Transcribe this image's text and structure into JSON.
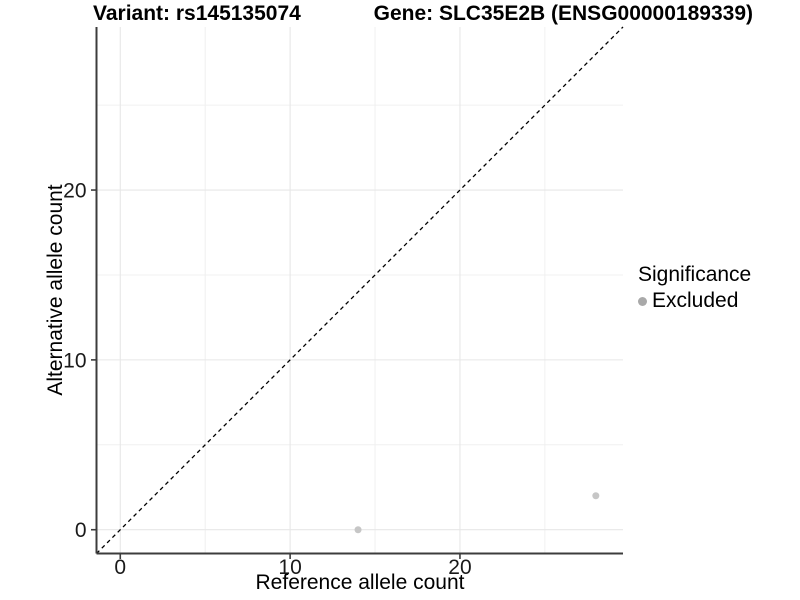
{
  "chart_data": {
    "type": "scatter",
    "title_variant": "Variant: rs145135074",
    "title_gene": "Gene: SLC35E2B (ENSG00000189339)",
    "xlabel": "Reference allele count",
    "ylabel": "Alternative allele count",
    "xlim": [
      -1.4,
      29.6
    ],
    "ylim": [
      -1.4,
      29.6
    ],
    "x_ticks": [
      0,
      10,
      20
    ],
    "y_ticks": [
      0,
      10,
      20
    ],
    "x_minor_ticks": [
      5,
      15,
      25
    ],
    "y_minor_ticks": [
      5,
      15,
      25
    ],
    "grid": "major+minor",
    "legend_position": "right",
    "legend_title": "Significance",
    "series": [
      {
        "name": "Excluded",
        "marker": "circle",
        "color": "#c6c6c6",
        "points": [
          [
            14,
            0
          ],
          [
            28,
            2
          ]
        ]
      }
    ],
    "reference_line": {
      "type": "identity",
      "style": "dashed",
      "color": "#000000"
    }
  },
  "colors": {
    "background": "#ffffff",
    "grid_major": "#e7e7e7",
    "grid_minor": "#f0f0f0",
    "axis_line": "#3c3c3c",
    "axis_text": "#1a1a1a",
    "title_text": "#000000",
    "legend_swatch": "#a9a9a9",
    "identity_line": "#000000"
  }
}
